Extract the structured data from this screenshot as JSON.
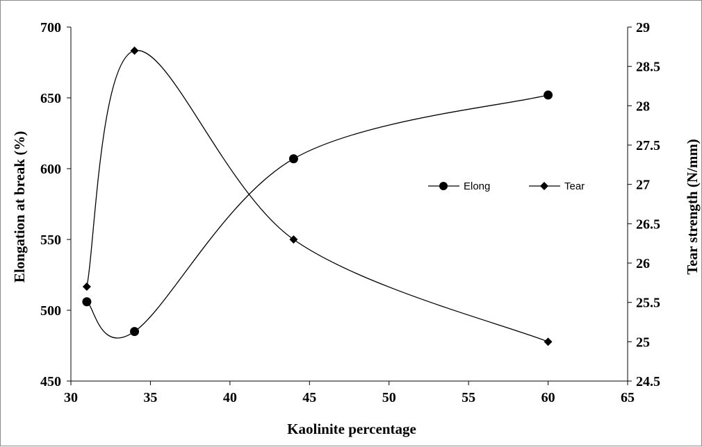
{
  "chart_data": {
    "type": "scatter",
    "smoothed_lines": true,
    "xlabel": "Kaolinite percentage",
    "ylabel_left": "Elongation at break (%)",
    "ylabel_right": "Tear strength (N/mm)",
    "xlim": [
      30,
      65
    ],
    "ylim_left": [
      450,
      700
    ],
    "ylim_right": [
      24.5,
      29
    ],
    "x_ticks": [
      "30",
      "35",
      "40",
      "45",
      "50",
      "55",
      "60",
      "65"
    ],
    "y_left_ticks": [
      "450",
      "500",
      "550",
      "600",
      "650",
      "700"
    ],
    "y_right_ticks": [
      "24.5",
      "25",
      "25.5",
      "26",
      "26.5",
      "27",
      "27.5",
      "28",
      "28.5",
      "29"
    ],
    "grid": false,
    "legend_position": "center-right",
    "series": [
      {
        "name": "Elong",
        "axis": "left",
        "marker": "circle",
        "color": "#000000",
        "x": [
          31,
          34,
          44,
          60
        ],
        "y": [
          506,
          485,
          607,
          652
        ]
      },
      {
        "name": "Tear",
        "axis": "right",
        "marker": "diamond",
        "color": "#000000",
        "x": [
          31,
          34,
          44,
          60
        ],
        "y": [
          25.7,
          28.7,
          26.3,
          25.0
        ]
      }
    ]
  }
}
